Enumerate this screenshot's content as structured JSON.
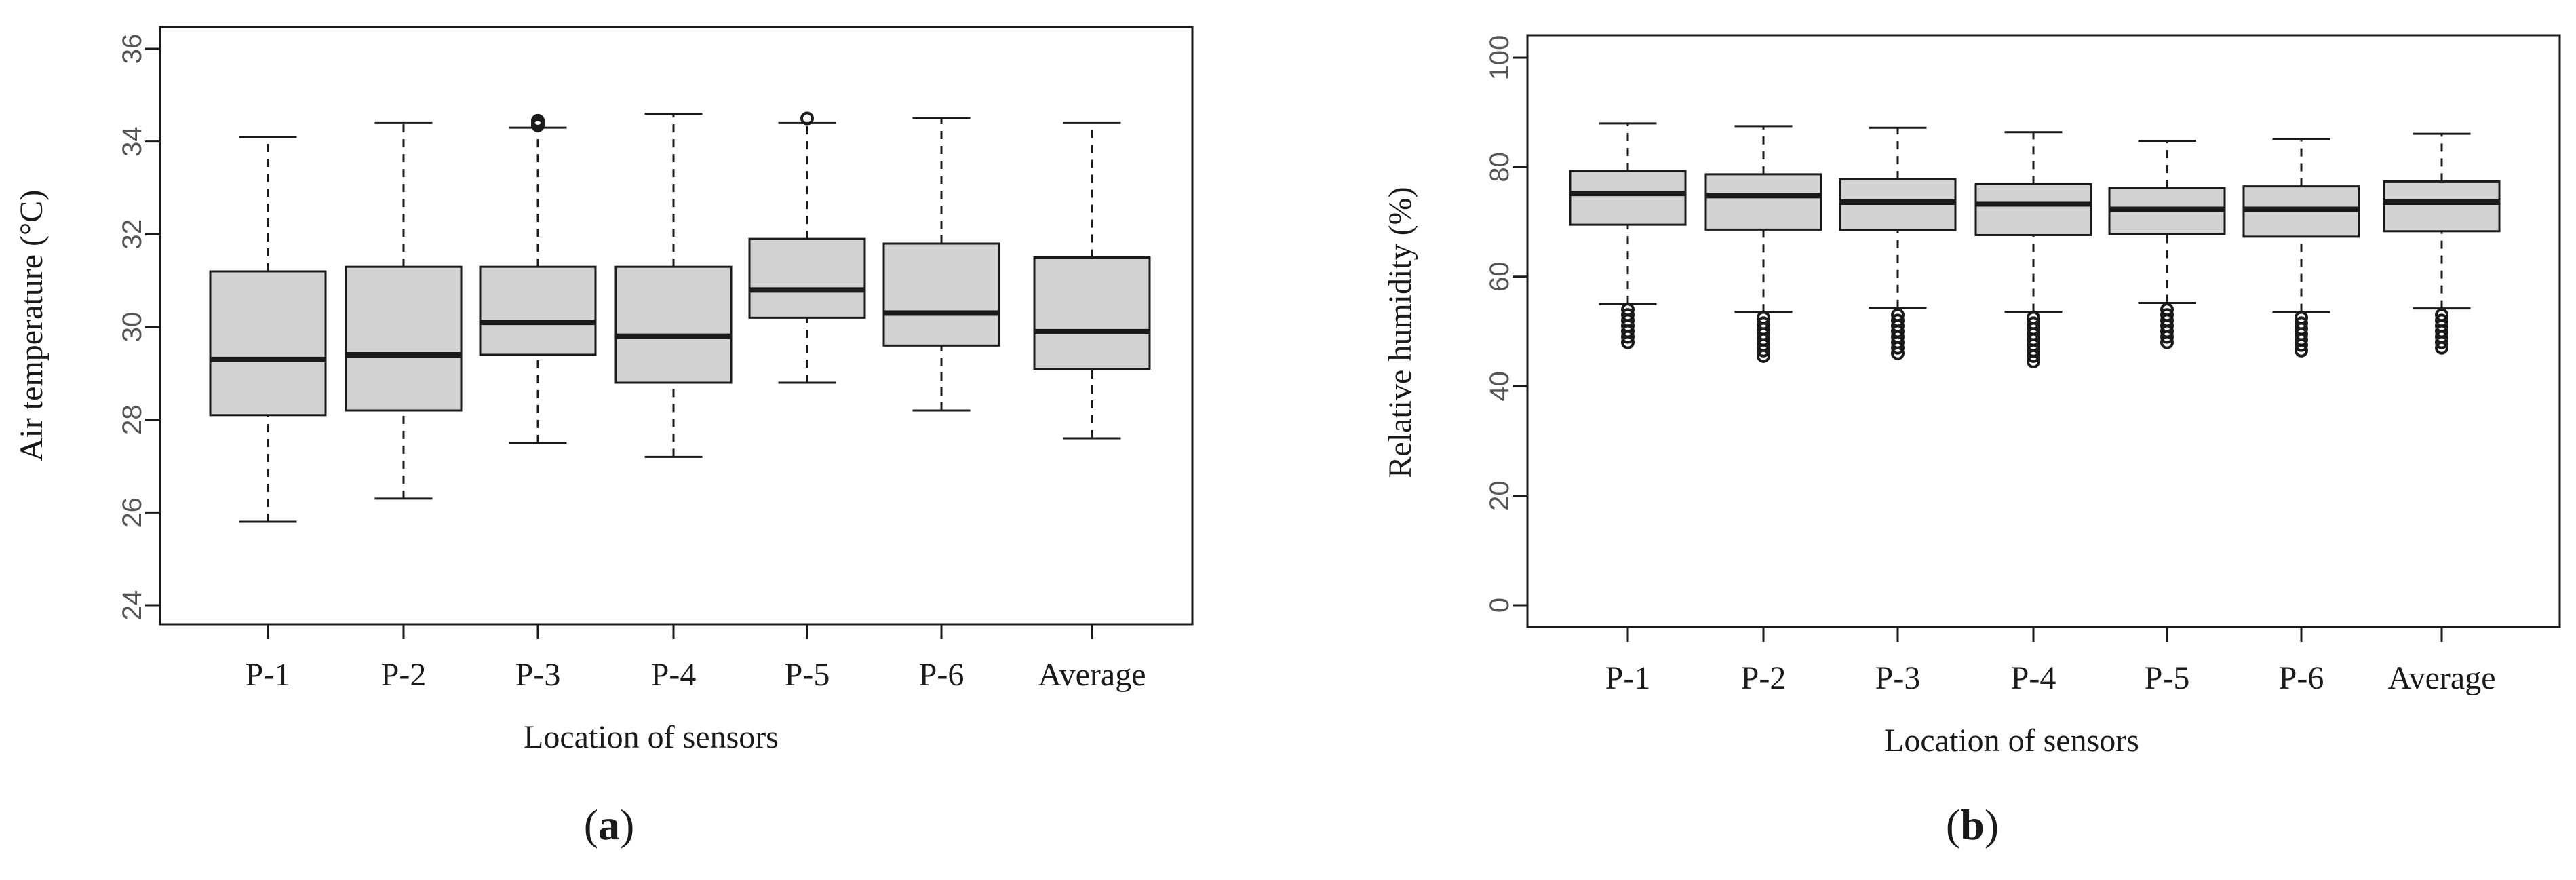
{
  "chart_data": [
    {
      "type": "boxplot",
      "panel_label_prefix": "(",
      "panel_label_letter": "a",
      "panel_label_suffix": ")",
      "xlabel": "Location of sensors",
      "ylabel": "Air temperature (°C)",
      "ylim": [
        24,
        36
      ],
      "yticks": [
        24,
        26,
        28,
        30,
        32,
        34,
        36
      ],
      "categories": [
        "P-1",
        "P-2",
        "P-3",
        "P-4",
        "P-5",
        "P-6",
        "Average"
      ],
      "boxes": [
        {
          "whisker_low": 25.8,
          "q1": 28.1,
          "median": 29.3,
          "q3": 31.2,
          "whisker_high": 34.1,
          "outliers": []
        },
        {
          "whisker_low": 26.3,
          "q1": 28.2,
          "median": 29.4,
          "q3": 31.3,
          "whisker_high": 34.4,
          "outliers": []
        },
        {
          "whisker_low": 27.5,
          "q1": 29.4,
          "median": 30.1,
          "q3": 31.3,
          "whisker_high": 34.3,
          "outliers": [
            34.35,
            34.4,
            34.45
          ]
        },
        {
          "whisker_low": 27.2,
          "q1": 28.8,
          "median": 29.8,
          "q3": 31.3,
          "whisker_high": 34.6,
          "outliers": []
        },
        {
          "whisker_low": 28.8,
          "q1": 30.2,
          "median": 30.8,
          "q3": 31.9,
          "whisker_high": 34.4,
          "outliers": [
            34.5
          ]
        },
        {
          "whisker_low": 28.2,
          "q1": 29.6,
          "median": 30.3,
          "q3": 31.8,
          "whisker_high": 34.5,
          "outliers": []
        },
        {
          "whisker_low": 27.6,
          "q1": 29.1,
          "median": 29.9,
          "q3": 31.5,
          "whisker_high": 34.4,
          "outliers": []
        }
      ],
      "colors": {
        "box_fill": "#d3d3d3",
        "stroke": "#1a1a1a"
      }
    },
    {
      "type": "boxplot",
      "panel_label_prefix": "(",
      "panel_label_letter": "b",
      "panel_label_suffix": ")",
      "xlabel": "Location of sensors",
      "ylabel": "Relative humidity (%)",
      "ylim": [
        0,
        100
      ],
      "yticks": [
        0,
        20,
        40,
        60,
        80,
        100
      ],
      "categories": [
        "P-1",
        "P-2",
        "P-3",
        "P-4",
        "P-5",
        "P-6",
        "Average"
      ],
      "boxes": [
        {
          "whisker_low": 55,
          "q1": 69.5,
          "median": 75.2,
          "q3": 79.3,
          "whisker_high": 88,
          "outliers": [
            48,
            49,
            50,
            51,
            52,
            53,
            54
          ]
        },
        {
          "whisker_low": 53.5,
          "q1": 68.6,
          "median": 74.8,
          "q3": 78.7,
          "whisker_high": 87.5,
          "outliers": [
            45.5,
            46.5,
            47.5,
            48.5,
            49.5,
            50.5,
            51.5,
            52.5
          ]
        },
        {
          "whisker_low": 54.3,
          "q1": 68.5,
          "median": 73.6,
          "q3": 77.8,
          "whisker_high": 87.2,
          "outliers": [
            46,
            47,
            48,
            49,
            50,
            51,
            52,
            53
          ]
        },
        {
          "whisker_low": 53.6,
          "q1": 67.6,
          "median": 73.3,
          "q3": 76.9,
          "whisker_high": 86.4,
          "outliers": [
            44.5,
            45.5,
            46.5,
            47.5,
            48.5,
            49.5,
            50.5,
            51.5,
            52.5
          ]
        },
        {
          "whisker_low": 55.2,
          "q1": 67.8,
          "median": 72.3,
          "q3": 76.2,
          "whisker_high": 84.8,
          "outliers": [
            48,
            49,
            50,
            51,
            52,
            53,
            54
          ]
        },
        {
          "whisker_low": 53.6,
          "q1": 67.3,
          "median": 72.3,
          "q3": 76.5,
          "whisker_high": 85.1,
          "outliers": [
            46.5,
            47.5,
            48.5,
            49.5,
            50.5,
            51.5,
            52.5
          ]
        },
        {
          "whisker_low": 54.2,
          "q1": 68.3,
          "median": 73.6,
          "q3": 77.4,
          "whisker_high": 86.1,
          "outliers": [
            47,
            48,
            49,
            50,
            51,
            52,
            53
          ]
        }
      ],
      "colors": {
        "box_fill": "#d3d3d3",
        "stroke": "#1a1a1a"
      }
    }
  ]
}
